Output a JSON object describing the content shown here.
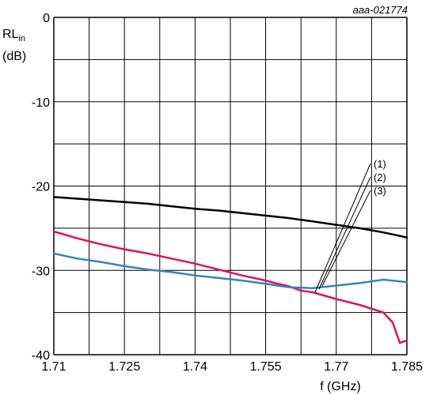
{
  "chart_data": {
    "type": "line",
    "reference": "aaa-021774",
    "ylabel_main": "RL",
    "ylabel_sub": "in",
    "ylabel_unit": "(dB)",
    "xlabel": "f (GHz)",
    "xlim": [
      1.71,
      1.785
    ],
    "ylim": [
      -40,
      0
    ],
    "x_ticks": [
      "1.71",
      "1.725",
      "1.74",
      "1.755",
      "1.77",
      "1.785"
    ],
    "y_ticks": [
      "0",
      "-10",
      "-20",
      "-30",
      "-40"
    ],
    "grid": true,
    "series": [
      {
        "name": "(1)",
        "color": "#000000",
        "x": [
          1.71,
          1.715,
          1.72,
          1.725,
          1.73,
          1.735,
          1.74,
          1.745,
          1.75,
          1.755,
          1.76,
          1.765,
          1.77,
          1.775,
          1.78,
          1.785
        ],
        "y": [
          -21.3,
          -21.5,
          -21.7,
          -21.9,
          -22.1,
          -22.4,
          -22.7,
          -22.9,
          -23.2,
          -23.5,
          -23.8,
          -24.2,
          -24.6,
          -25.0,
          -25.5,
          -26.1
        ]
      },
      {
        "name": "(2)",
        "color": "#e0115f",
        "x": [
          1.71,
          1.715,
          1.72,
          1.725,
          1.73,
          1.735,
          1.74,
          1.745,
          1.75,
          1.755,
          1.757,
          1.76,
          1.7625,
          1.765,
          1.77,
          1.775,
          1.78,
          1.782,
          1.7835,
          1.785
        ],
        "y": [
          -25.4,
          -26.2,
          -26.9,
          -27.5,
          -28.0,
          -28.6,
          -29.2,
          -29.9,
          -30.6,
          -31.2,
          -31.5,
          -31.9,
          -32.4,
          -32.6,
          -33.4,
          -34.1,
          -35.0,
          -36.2,
          -38.6,
          -38.3
        ]
      },
      {
        "name": "(3)",
        "color": "#2e86c1",
        "x": [
          1.71,
          1.715,
          1.72,
          1.725,
          1.73,
          1.735,
          1.74,
          1.745,
          1.75,
          1.755,
          1.76,
          1.765,
          1.77,
          1.775,
          1.78,
          1.785
        ],
        "y": [
          -28.0,
          -28.6,
          -29.0,
          -29.5,
          -29.9,
          -30.2,
          -30.6,
          -30.9,
          -31.2,
          -31.6,
          -32.0,
          -32.1,
          -31.8,
          -31.5,
          -31.1,
          -31.4
        ]
      }
    ]
  }
}
